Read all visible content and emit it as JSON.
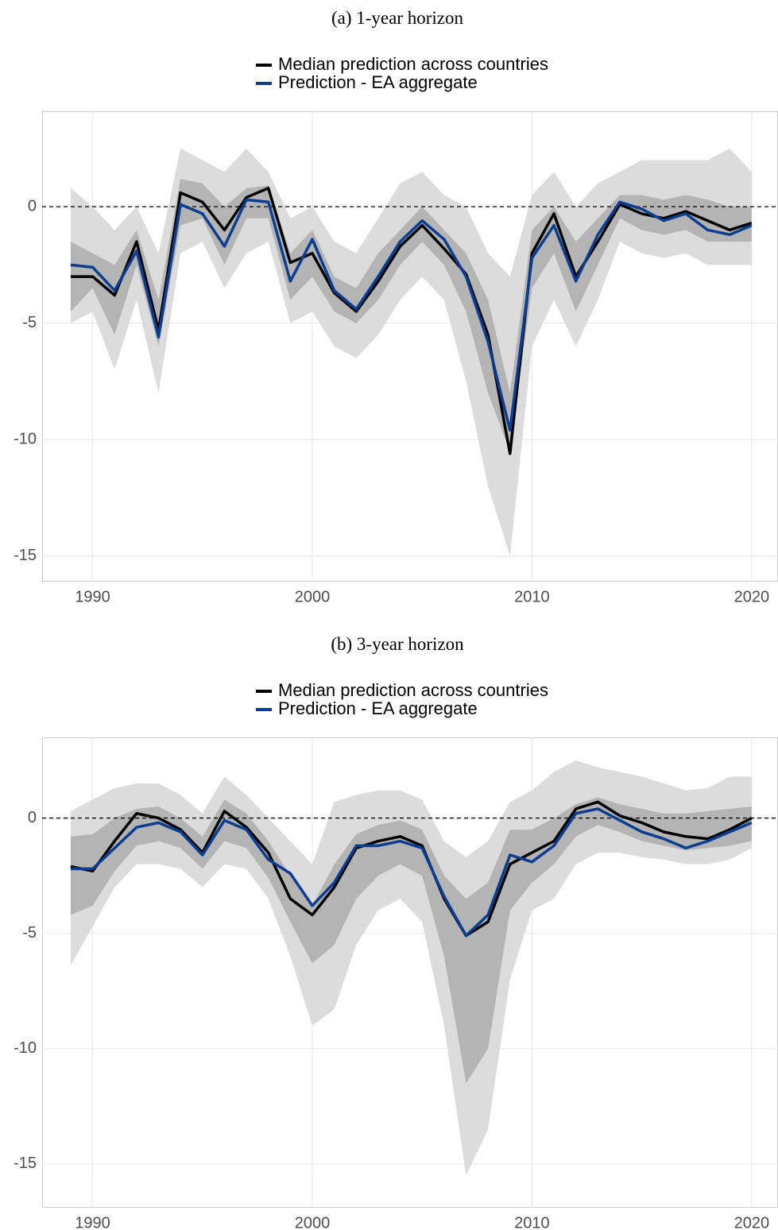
{
  "chart_data": [
    {
      "type": "line",
      "title": "(a) 1-year horizon",
      "x": [
        1989,
        1990,
        1991,
        1992,
        1993,
        1994,
        1995,
        1996,
        1997,
        1998,
        1999,
        2000,
        2001,
        2002,
        2003,
        2004,
        2005,
        2006,
        2007,
        2008,
        2009,
        2010,
        2011,
        2012,
        2013,
        2014,
        2015,
        2016,
        2017,
        2018,
        2019,
        2020
      ],
      "series": [
        {
          "name": "Median prediction across countries",
          "color": "#000000",
          "values": [
            -3,
            -3.0,
            -3.8,
            -1.5,
            -5.3,
            0.6,
            0.2,
            -1.0,
            0.4,
            0.8,
            -2.4,
            -2.0,
            -3.7,
            -4.5,
            -3.2,
            -1.7,
            -0.8,
            -1.8,
            -2.9,
            -5.5,
            -10.6,
            -2.0,
            -0.3,
            -3.0,
            -1.5,
            0.1,
            -0.3,
            -0.5,
            -0.2,
            -0.6,
            -1.0,
            -0.7
          ]
        },
        {
          "name": "Prediction - EA aggregate",
          "color": "#0b3d91",
          "values": [
            -2.5,
            -2.6,
            -3.6,
            -1.9,
            -5.6,
            0.1,
            -0.3,
            -1.7,
            0.3,
            0.2,
            -3.2,
            -1.4,
            -3.6,
            -4.4,
            -3.0,
            -1.5,
            -0.6,
            -1.4,
            -3.0,
            -5.8,
            -9.6,
            -2.2,
            -0.8,
            -3.2,
            -1.2,
            0.2,
            -0.1,
            -0.6,
            -0.3,
            -1.0,
            -1.2,
            -0.8
          ]
        }
      ],
      "bands": [
        {
          "color": "#dcdcdc",
          "lower": [
            -5,
            -4.5,
            -7,
            -4,
            -8,
            -2,
            -1.5,
            -3.5,
            -2,
            -1.5,
            -5,
            -4.5,
            -6,
            -6.5,
            -5.5,
            -4,
            -3,
            -4,
            -7.5,
            -12,
            -15,
            -6,
            -4,
            -6,
            -4,
            -1.5,
            -2,
            -2.2,
            -2,
            -2.5,
            -2.5,
            -2.5
          ],
          "upper": [
            0.8,
            0,
            -1,
            0,
            -2,
            2.5,
            2,
            1.5,
            2.5,
            1.5,
            -0.5,
            0,
            -1.5,
            -2,
            -0.5,
            1,
            1.5,
            0.5,
            0,
            -2,
            -3,
            0.5,
            1.5,
            0,
            1,
            1.5,
            2,
            2,
            2,
            2,
            2.5,
            1.5
          ]
        },
        {
          "color": "#b4b4b4",
          "lower": [
            -4.5,
            -3.5,
            -5.5,
            -2.5,
            -6,
            -0.8,
            -0.5,
            -2.5,
            -0.5,
            -0.5,
            -4,
            -3,
            -4.5,
            -5,
            -4,
            -2.5,
            -1.5,
            -2.5,
            -4.5,
            -8,
            -10.5,
            -3.5,
            -2,
            -4.5,
            -2.5,
            -0.5,
            -1,
            -1.2,
            -1,
            -1.5,
            -1.5,
            -1.5
          ],
          "upper": [
            -1.5,
            -2,
            -2.5,
            -1,
            -4,
            1.2,
            1,
            0,
            0.8,
            0.9,
            -2,
            -1,
            -3,
            -3.5,
            -2,
            -1,
            0,
            -1,
            -2,
            -4,
            -8,
            -1,
            0,
            -1.5,
            -0.5,
            0.5,
            0.5,
            0.3,
            0.5,
            0.3,
            0,
            0
          ]
        }
      ],
      "xlim": [
        1987.7,
        2021.2
      ],
      "ylim": [
        -16.1,
        4.1
      ],
      "xticks": [
        1990,
        2000,
        2010,
        2020
      ],
      "yticks": [
        0,
        -5,
        -10,
        -15
      ],
      "grid": true,
      "hline": 0
    },
    {
      "type": "line",
      "title": "(b) 3-year horizon",
      "x": [
        1989,
        1990,
        1991,
        1992,
        1993,
        1994,
        1995,
        1996,
        1997,
        1998,
        1999,
        2000,
        2001,
        2002,
        2003,
        2004,
        2005,
        2006,
        2007,
        2008,
        2009,
        2010,
        2011,
        2012,
        2013,
        2014,
        2015,
        2016,
        2017,
        2018,
        2019,
        2020
      ],
      "series": [
        {
          "name": "Median prediction across countries",
          "color": "#000000",
          "values": [
            -2.1,
            -2.3,
            -1.0,
            0.2,
            0.0,
            -0.5,
            -1.5,
            0.3,
            -0.4,
            -1.5,
            -3.5,
            -4.2,
            -3.0,
            -1.3,
            -1.0,
            -0.8,
            -1.2,
            -3.5,
            -5.1,
            -4.5,
            -2.0,
            -1.5,
            -1.0,
            0.4,
            0.7,
            0.1,
            -0.2,
            -0.6,
            -0.8,
            -0.9,
            -0.5,
            0.0
          ]
        },
        {
          "name": "Prediction - EA aggregate",
          "color": "#0b3d91",
          "values": [
            -2.2,
            -2.2,
            -1.3,
            -0.4,
            -0.2,
            -0.6,
            -1.6,
            -0.1,
            -0.5,
            -1.8,
            -2.4,
            -3.8,
            -2.8,
            -1.2,
            -1.2,
            -1.0,
            -1.3,
            -3.4,
            -5.1,
            -4.2,
            -1.6,
            -1.9,
            -1.2,
            0.2,
            0.4,
            -0.1,
            -0.6,
            -0.9,
            -1.3,
            -1.0,
            -0.6,
            -0.2
          ]
        }
      ],
      "bands": [
        {
          "color": "#dcdcdc",
          "lower": [
            -6.4,
            -4.7,
            -3,
            -2,
            -2,
            -2.2,
            -3,
            -2,
            -2.2,
            -3.5,
            -6,
            -9,
            -8.3,
            -5.5,
            -4,
            -3.5,
            -4.5,
            -9,
            -15.5,
            -13.5,
            -7,
            -4,
            -3.5,
            -2,
            -1.5,
            -1.5,
            -1.7,
            -1.8,
            -2,
            -2,
            -1.8,
            -1.3
          ],
          "upper": [
            0.3,
            0.8,
            1.3,
            1.5,
            1.5,
            1,
            0.2,
            1.8,
            1,
            0,
            -1,
            -2,
            0.7,
            1,
            1.2,
            1.2,
            0.8,
            -1,
            -1.7,
            -1,
            0.7,
            1.2,
            2,
            2.5,
            2.2,
            2,
            1.8,
            1.5,
            1.2,
            1.3,
            1.8,
            1.8
          ]
        },
        {
          "color": "#b4b4b4",
          "lower": [
            -4.2,
            -3.8,
            -2.3,
            -1.2,
            -1,
            -1.3,
            -2.2,
            -1,
            -1.3,
            -2.6,
            -4.5,
            -6.3,
            -5.5,
            -3.5,
            -2.5,
            -2,
            -2.5,
            -6,
            -11.5,
            -10,
            -4,
            -2.8,
            -2,
            -0.8,
            -0.3,
            -0.6,
            -1,
            -1.2,
            -1.4,
            -1.3,
            -1.2,
            -1
          ],
          "upper": [
            -0.8,
            -0.7,
            0,
            0.4,
            0.5,
            0,
            -0.8,
            0.8,
            0.2,
            -1,
            -2.5,
            -3.8,
            -2,
            -0.7,
            -0.3,
            -0.1,
            -0.5,
            -2.5,
            -3.5,
            -2.8,
            -0.5,
            -0.5,
            0,
            0.6,
            0.9,
            0.6,
            0.4,
            0.2,
            0.2,
            0.3,
            0.4,
            0.5
          ]
        }
      ],
      "xlim": [
        1987.7,
        2021.2
      ],
      "ylim": [
        -16.9,
        3.5
      ],
      "xticks": [
        1990,
        2000,
        2010,
        2020
      ],
      "yticks": [
        0,
        -5,
        -10,
        -15
      ],
      "grid": true,
      "hline": 0
    }
  ]
}
